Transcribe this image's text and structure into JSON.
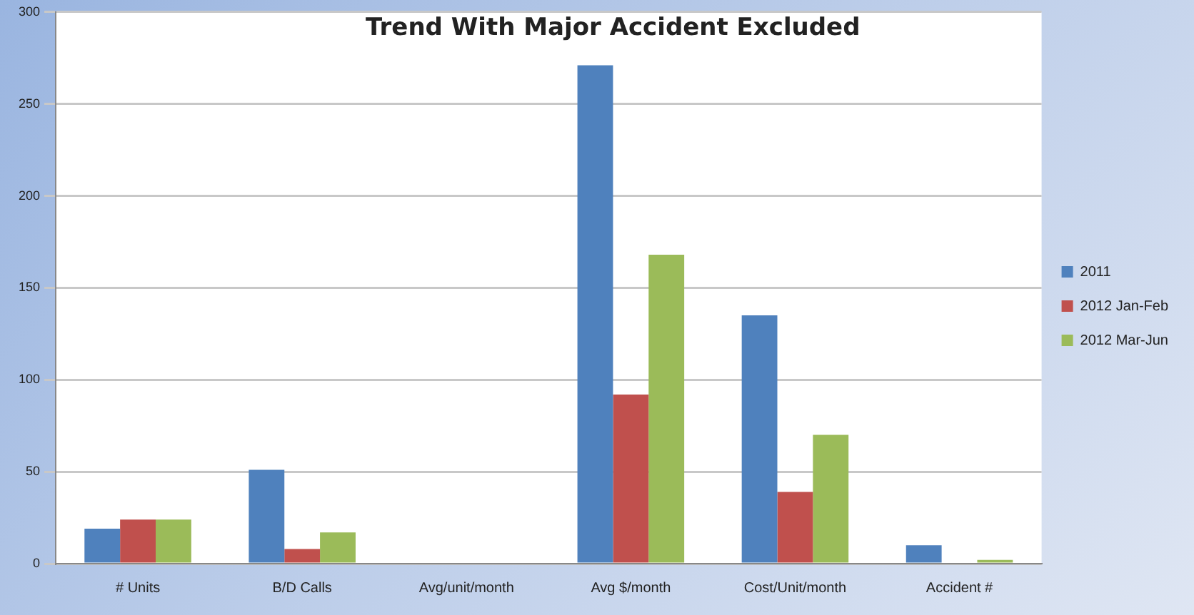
{
  "chart_data": {
    "type": "bar",
    "title": "Trend With Major Accident Excluded",
    "categories": [
      "# Units",
      "B/D Calls",
      "Avg/unit/month",
      "Avg $/month",
      "Cost/Unit/month",
      "Accident #"
    ],
    "series": [
      {
        "name": "2011",
        "color": "#4f81bd",
        "values": [
          19,
          51,
          0,
          271,
          135,
          10
        ]
      },
      {
        "name": "2012 Jan-Feb",
        "color": "#c0504d",
        "values": [
          24,
          8,
          0,
          92,
          39,
          0
        ]
      },
      {
        "name": "2012 Mar-Jun",
        "color": "#9bbb59",
        "values": [
          24,
          17,
          0,
          168,
          70,
          2
        ]
      }
    ],
    "ylim": [
      0,
      300
    ],
    "yticks": [
      0,
      50,
      100,
      150,
      200,
      250,
      300
    ],
    "grid": "y",
    "legend": "right"
  }
}
